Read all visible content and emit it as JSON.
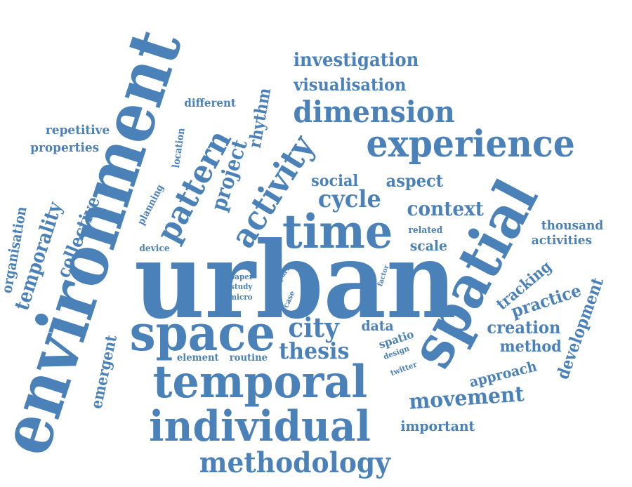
{
  "color": "#4a81b8",
  "words": [
    {
      "text": "urban"
    },
    {
      "text": "environment"
    },
    {
      "text": "spatial"
    },
    {
      "text": "space"
    },
    {
      "text": "temporal"
    },
    {
      "text": "individual"
    },
    {
      "text": "time"
    },
    {
      "text": "experience"
    },
    {
      "text": "activity"
    },
    {
      "text": "methodology"
    },
    {
      "text": "pattern"
    },
    {
      "text": "dimension"
    },
    {
      "text": "city"
    },
    {
      "text": "movement"
    },
    {
      "text": "cycle"
    },
    {
      "text": "thesis"
    },
    {
      "text": "temporality"
    },
    {
      "text": "collective"
    },
    {
      "text": "project"
    },
    {
      "text": "rhythm"
    },
    {
      "text": "context"
    },
    {
      "text": "development"
    },
    {
      "text": "investigation"
    },
    {
      "text": "visualisation"
    },
    {
      "text": "practice"
    },
    {
      "text": "creation"
    },
    {
      "text": "social"
    },
    {
      "text": "aspect"
    },
    {
      "text": "emergent"
    },
    {
      "text": "organisation"
    },
    {
      "text": "method"
    },
    {
      "text": "tracking"
    },
    {
      "text": "scale"
    },
    {
      "text": "approach"
    },
    {
      "text": "data"
    },
    {
      "text": "important"
    },
    {
      "text": "repetitive"
    },
    {
      "text": "properties"
    },
    {
      "text": "thousand"
    },
    {
      "text": "activities"
    },
    {
      "text": "different"
    },
    {
      "text": "spatio"
    },
    {
      "text": "planning"
    },
    {
      "text": "location"
    },
    {
      "text": "element"
    },
    {
      "text": "routine"
    },
    {
      "text": "device"
    },
    {
      "text": "related"
    },
    {
      "text": "paper"
    },
    {
      "text": "study"
    },
    {
      "text": "micro"
    },
    {
      "text": "part"
    },
    {
      "text": "case"
    },
    {
      "text": "factor"
    },
    {
      "text": "design"
    },
    {
      "text": "twitter"
    }
  ]
}
